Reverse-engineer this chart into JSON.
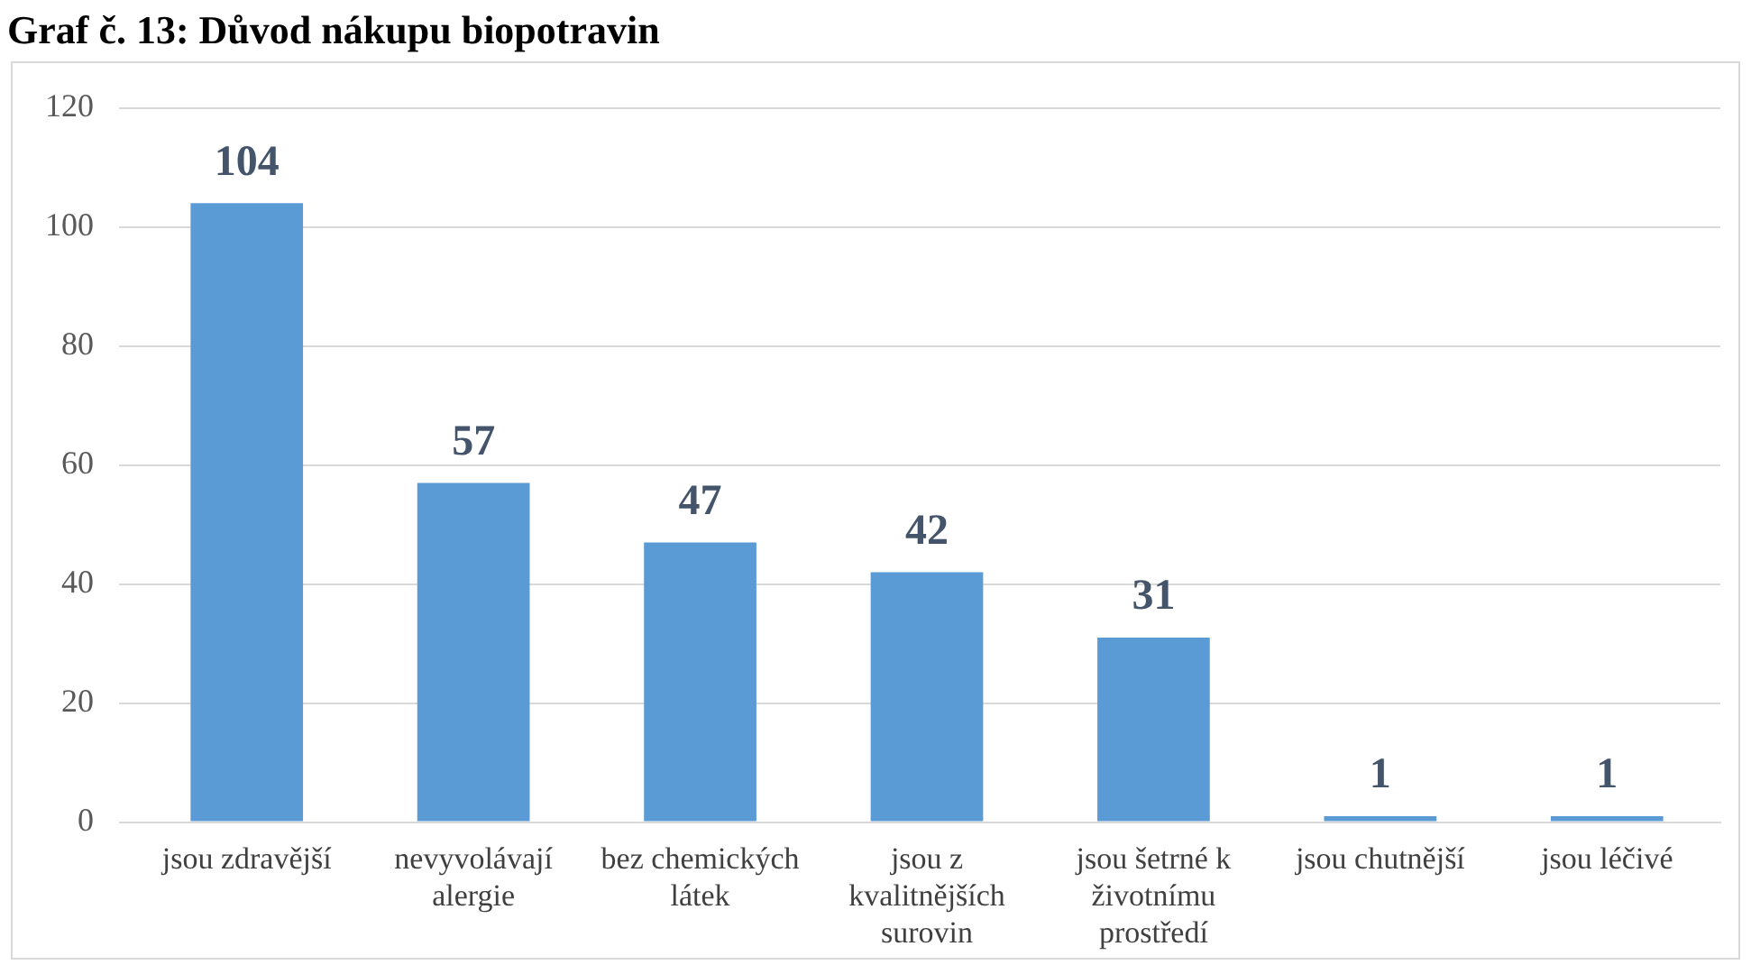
{
  "chart_data": {
    "type": "bar",
    "title": "Graf č. 13: Důvod nákupu biopotravin",
    "categories": [
      "jsou zdravější",
      "nevyvolávají alergie",
      "bez chemických látek",
      "jsou z kvalitnějších surovin",
      "jsou šetrné k životnímu prostředí",
      "jsou chutnější",
      "jsou léčivé"
    ],
    "values": [
      104,
      57,
      47,
      42,
      31,
      1,
      1
    ],
    "color": "#5b9bd5",
    "ylim": [
      0,
      120
    ],
    "yticks": [
      0,
      20,
      40,
      60,
      80,
      100,
      120
    ],
    "grid": "y",
    "data_labels": true,
    "legend": false
  }
}
